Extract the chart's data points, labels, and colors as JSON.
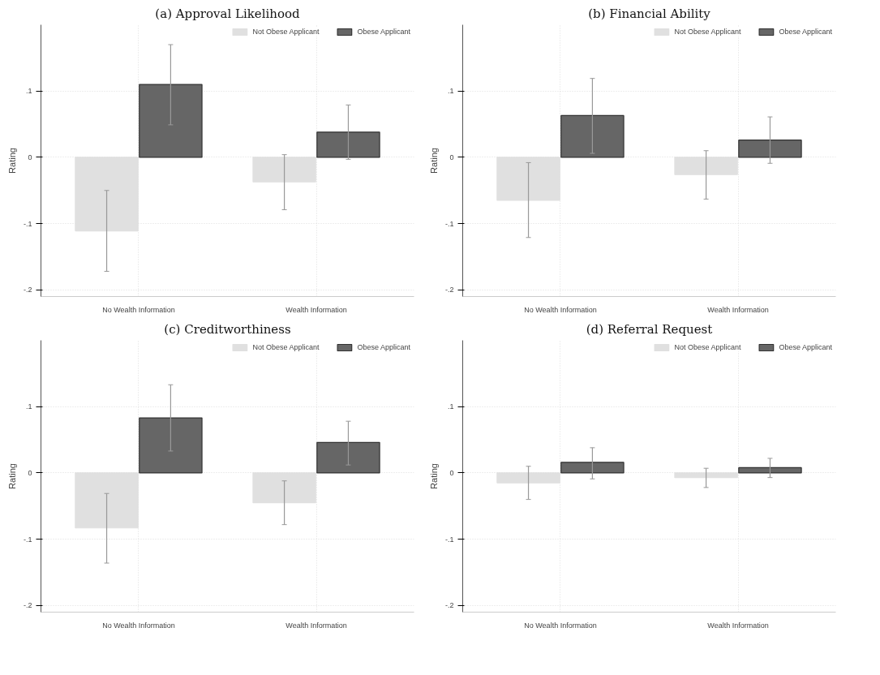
{
  "chart_data": [
    {
      "type": "bar",
      "title": "(a) Approval Likelihood",
      "ylabel": "Rating",
      "categories": [
        "No Wealth Information",
        "Wealth Information"
      ],
      "series": [
        {
          "name": "Not Obese Applicant",
          "color": "#e0e0e0",
          "values": [
            -0.111,
            -0.037
          ],
          "errors": [
            [
              -0.172,
              -0.05
            ],
            [
              -0.079,
              0.004
            ]
          ]
        },
        {
          "name": "Obese Applicant",
          "color": "#666666",
          "values": [
            0.11,
            0.038
          ],
          "errors": [
            [
              0.049,
              0.17
            ],
            [
              -0.003,
              0.079
            ]
          ]
        }
      ],
      "ylim": [
        -0.21,
        0.2
      ],
      "yticks": [
        {
          "value": -0.2,
          "label": "-.2"
        },
        {
          "value": -0.1,
          "label": "-.1"
        },
        0,
        {
          "value": 0.1,
          "label": ".1"
        }
      ],
      "grid": true,
      "legend": "top right"
    },
    {
      "type": "bar",
      "title": "(b) Financial Ability",
      "ylabel": "Rating",
      "categories": [
        "No Wealth Information",
        "Wealth Information"
      ],
      "series": [
        {
          "name": "Not Obese Applicant",
          "color": "#e0e0e0",
          "values": [
            -0.065,
            -0.026
          ],
          "errors": [
            [
              -0.121,
              -0.008
            ],
            [
              -0.063,
              0.01
            ]
          ]
        },
        {
          "name": "Obese Applicant",
          "color": "#666666",
          "values": [
            0.063,
            0.026
          ],
          "errors": [
            [
              0.006,
              0.119
            ],
            [
              -0.009,
              0.061
            ]
          ]
        }
      ],
      "ylim": [
        -0.21,
        0.2
      ],
      "yticks": [
        {
          "value": -0.2,
          "label": "-.2"
        },
        {
          "value": -0.1,
          "label": "-.1"
        },
        0,
        {
          "value": 0.1,
          "label": ".1"
        }
      ],
      "grid": true,
      "legend": "top right"
    },
    {
      "type": "bar",
      "title": "(c) Creditworthiness",
      "ylabel": "Rating",
      "categories": [
        "No Wealth Information",
        "Wealth Information"
      ],
      "series": [
        {
          "name": "Not Obese Applicant",
          "color": "#e0e0e0",
          "values": [
            -0.083,
            -0.045
          ],
          "errors": [
            [
              -0.136,
              -0.031
            ],
            [
              -0.078,
              -0.012
            ]
          ]
        },
        {
          "name": "Obese Applicant",
          "color": "#666666",
          "values": [
            0.083,
            0.046
          ],
          "errors": [
            [
              0.033,
              0.133
            ],
            [
              0.012,
              0.078
            ]
          ]
        }
      ],
      "ylim": [
        -0.21,
        0.2
      ],
      "yticks": [
        {
          "value": -0.2,
          "label": "-.2"
        },
        {
          "value": -0.1,
          "label": "-.1"
        },
        0,
        {
          "value": 0.1,
          "label": ".1"
        }
      ],
      "grid": true,
      "legend": "top right"
    },
    {
      "type": "bar",
      "title": "(d) Referral Request",
      "ylabel": "Rating",
      "categories": [
        "No Wealth Information",
        "Wealth Information"
      ],
      "series": [
        {
          "name": "Not Obese Applicant",
          "color": "#e0e0e0",
          "values": [
            -0.015,
            -0.007
          ],
          "errors": [
            [
              -0.04,
              0.01
            ],
            [
              -0.022,
              0.007
            ]
          ]
        },
        {
          "name": "Obese Applicant",
          "color": "#666666",
          "values": [
            0.016,
            0.008
          ],
          "errors": [
            [
              -0.009,
              0.038
            ],
            [
              -0.007,
              0.022
            ]
          ]
        }
      ],
      "ylim": [
        -0.21,
        0.2
      ],
      "yticks": [
        {
          "value": -0.2,
          "label": "-.2"
        },
        {
          "value": -0.1,
          "label": "-.1"
        },
        0,
        {
          "value": 0.1,
          "label": ".1"
        }
      ],
      "grid": true,
      "legend": "top right"
    }
  ]
}
